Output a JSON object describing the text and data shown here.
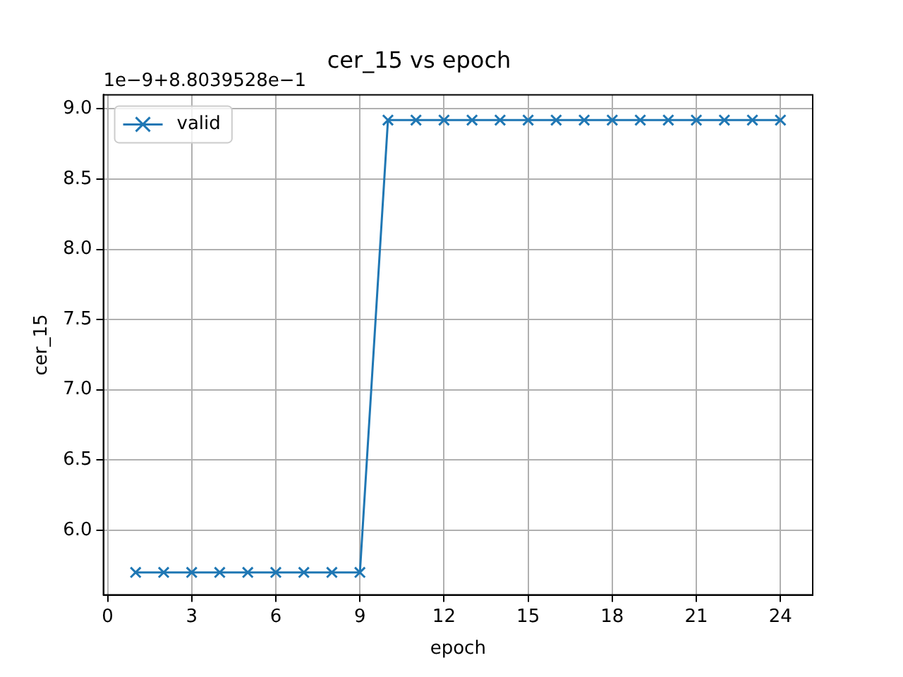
{
  "chart_data": {
    "type": "line",
    "title": "cer_15 vs epoch",
    "xlabel": "epoch",
    "ylabel": "cer_15",
    "annotations": [
      "1e−9+8.8039528e−1"
    ],
    "x": [
      1,
      2,
      3,
      4,
      5,
      6,
      7,
      8,
      9,
      10,
      11,
      12,
      13,
      14,
      15,
      16,
      17,
      18,
      19,
      20,
      21,
      22,
      23,
      24
    ],
    "series": [
      {
        "name": "valid",
        "color": "#1f77b4",
        "values": [
          5.7,
          5.7,
          5.7,
          5.7,
          5.7,
          5.7,
          5.7,
          5.7,
          5.7,
          8.92,
          8.92,
          8.92,
          8.92,
          8.92,
          8.92,
          8.92,
          8.92,
          8.92,
          8.92,
          8.92,
          8.92,
          8.92,
          8.92,
          8.92
        ]
      }
    ],
    "xlim": [
      -0.15,
      25.15
    ],
    "xticks": [
      0,
      3,
      6,
      9,
      12,
      15,
      18,
      21,
      24
    ],
    "ylim": [
      5.54,
      9.1
    ],
    "yticks": [
      {
        "value": 6,
        "label": "6.0"
      },
      {
        "value": 6.5,
        "label": "6.5"
      },
      {
        "value": 7,
        "label": "7.0"
      },
      {
        "value": 7.5,
        "label": "7.5"
      },
      {
        "value": 8,
        "label": "8.0"
      },
      {
        "value": 8.5,
        "label": "8.5"
      },
      {
        "value": 9,
        "label": "9.0"
      }
    ],
    "grid": true,
    "legend": "top left",
    "marker": "cross",
    "line_style": "solid"
  }
}
